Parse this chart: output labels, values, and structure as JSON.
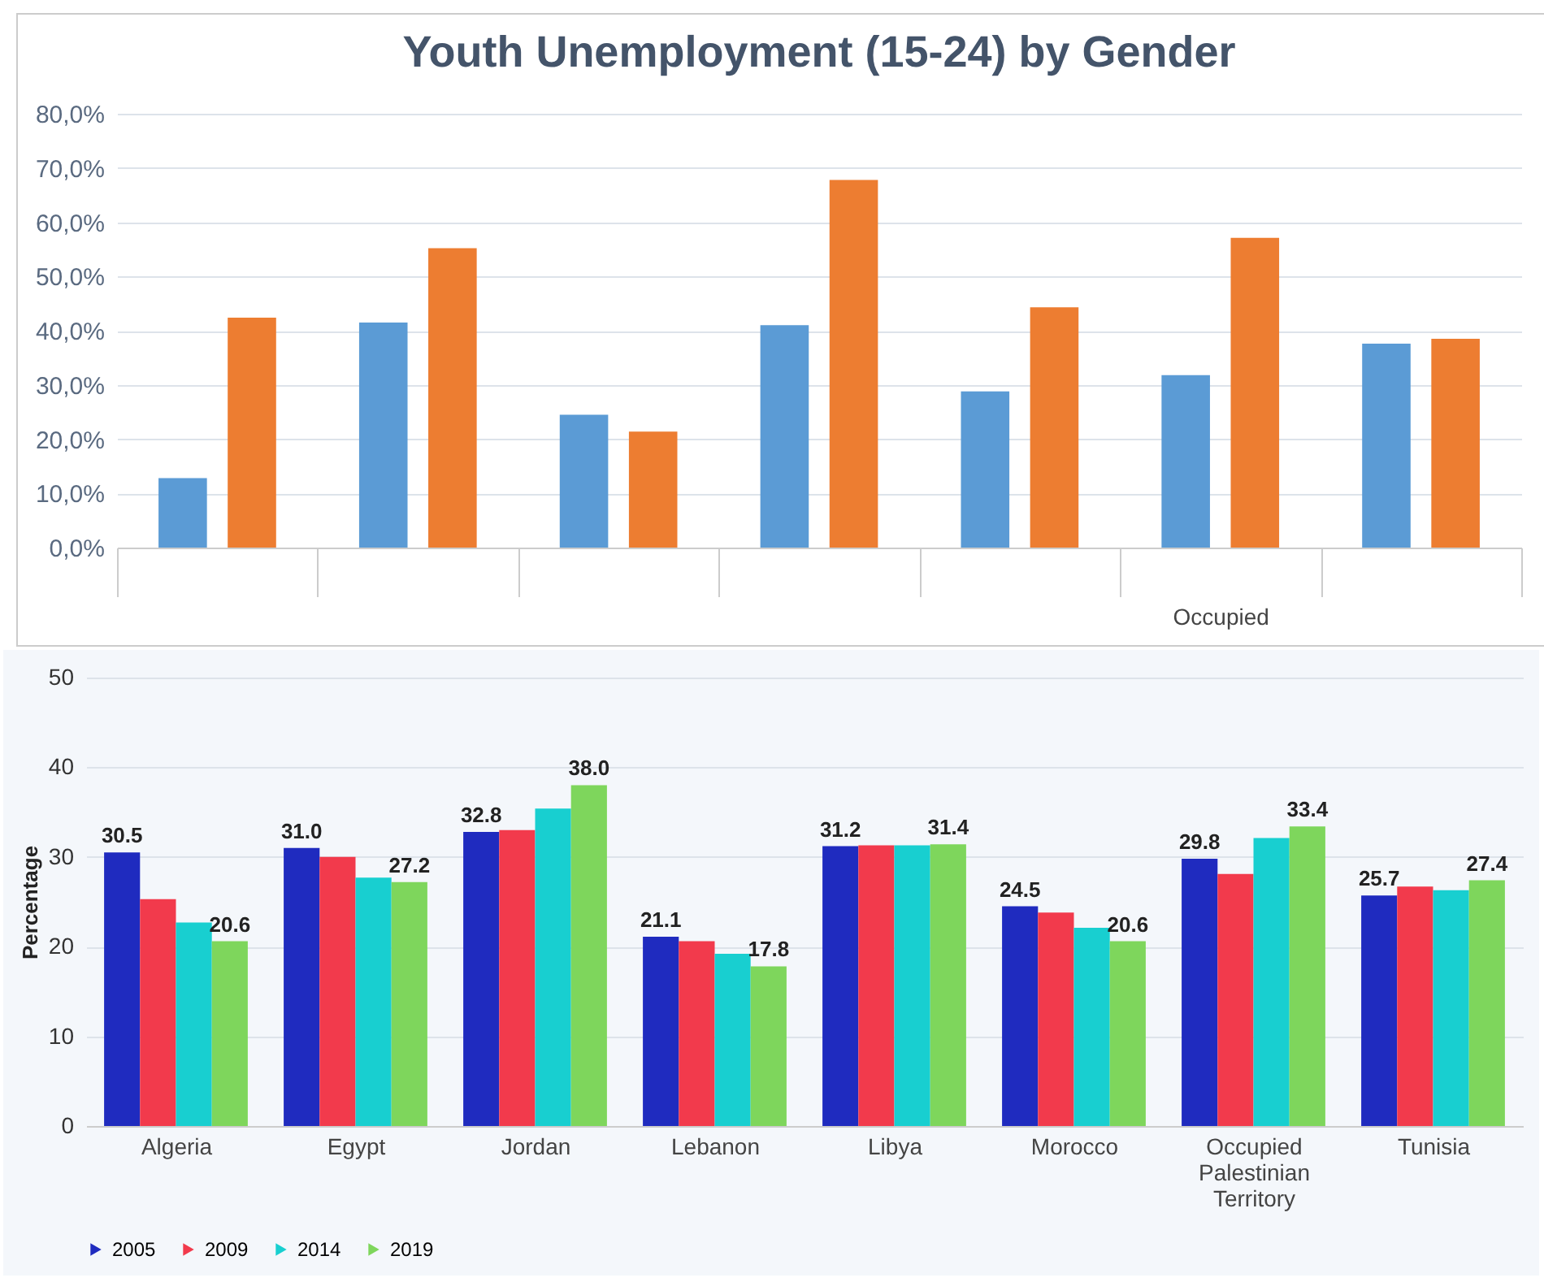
{
  "chart_data": [
    {
      "type": "bar",
      "title": "Youth Unemployment (15-24) by Gender",
      "categories": [
        null,
        null,
        null,
        null,
        null,
        "Occupied",
        null
      ],
      "series": [
        {
          "color": "#5b9bd5",
          "values": [
            12.8,
            41.5,
            24.5,
            41.0,
            28.8,
            31.8,
            37.6
          ]
        },
        {
          "color": "#ed7d31",
          "values": [
            42.4,
            55.2,
            21.4,
            67.8,
            44.3,
            57.1,
            38.5
          ]
        }
      ],
      "ylim": [
        0,
        80
      ],
      "yticks": [
        {
          "value": 0,
          "label": "0,0%"
        },
        {
          "value": 10,
          "label": "10,0%"
        },
        {
          "value": 20,
          "label": "20,0%"
        },
        {
          "value": 30,
          "label": "30,0%"
        },
        {
          "value": 40,
          "label": "40,0%"
        },
        {
          "value": 50,
          "label": "50,0%"
        },
        {
          "value": 60,
          "label": "60,0%"
        },
        {
          "value": 70,
          "label": "70,0%"
        },
        {
          "value": 80,
          "label": "80,0%"
        }
      ],
      "grid": "y"
    },
    {
      "type": "bar",
      "ylabel": "Percentage",
      "categories": [
        "Algeria",
        "Egypt",
        "Jordan",
        "Lebanon",
        "Libya",
        "Morocco",
        "Occupied Palestinian Territory",
        "Tunisia"
      ],
      "series": [
        {
          "name": "2005",
          "color": "#1f2bbf",
          "values": [
            30.5,
            31.0,
            32.8,
            21.1,
            31.2,
            24.5,
            29.8,
            25.7
          ],
          "value_labels": [
            "30.5",
            "31.0",
            "32.8",
            "21.1",
            "31.2",
            "24.5",
            "29.8",
            "25.7"
          ]
        },
        {
          "name": "2009",
          "color": "#f23a4c",
          "values": [
            25.3,
            30.0,
            33.0,
            20.6,
            31.3,
            23.8,
            28.1,
            26.7
          ]
        },
        {
          "name": "2014",
          "color": "#18cfd0",
          "values": [
            22.7,
            27.7,
            35.4,
            19.2,
            31.3,
            22.1,
            32.1,
            26.3
          ]
        },
        {
          "name": "2019",
          "color": "#7ed65c",
          "values": [
            20.6,
            27.2,
            38.0,
            17.8,
            31.4,
            20.6,
            33.4,
            27.4
          ],
          "value_labels": [
            "20.6",
            "27.2",
            "38.0",
            "17.8",
            "31.4",
            "20.6",
            "33.4",
            "27.4"
          ]
        }
      ],
      "ylim": [
        0,
        50
      ],
      "yticks": [
        0,
        10,
        20,
        30,
        40,
        50
      ],
      "grid": "y",
      "legend": "bottom"
    }
  ]
}
